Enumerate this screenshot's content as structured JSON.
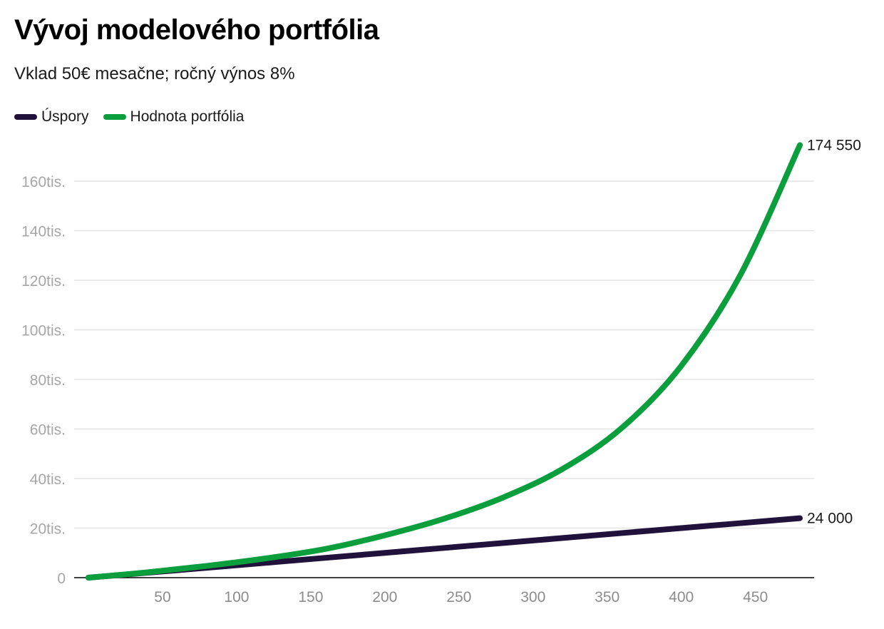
{
  "title": "Vývoj modelového portfólia",
  "subtitle": "Vklad 50€ mesačne; ročný výnos 8%",
  "legend": [
    {
      "label": "Úspory",
      "color": "#20123a"
    },
    {
      "label": "Hodnota portfólia",
      "color": "#0a9f3c"
    }
  ],
  "chart_data": {
    "type": "line",
    "title": "Vývoj modelového portfólia",
    "subtitle": "Vklad 50€ mesačne; ročný výnos 8%",
    "xlabel": "",
    "ylabel": "",
    "xlim": [
      0,
      480
    ],
    "ylim": [
      0,
      160000
    ],
    "x_ticks": [
      50,
      100,
      150,
      200,
      250,
      300,
      350,
      400,
      450
    ],
    "y_ticks": [
      0,
      20000,
      40000,
      60000,
      80000,
      100000,
      120000,
      140000,
      160000
    ],
    "y_tick_labels": [
      "0",
      "20tis.",
      "40tis.",
      "60tis.",
      "80tis.",
      "100tis.",
      "120tis.",
      "140tis.",
      "160tis."
    ],
    "grid": true,
    "legend_position": "top-left",
    "x": [
      0,
      40,
      80,
      120,
      160,
      200,
      240,
      280,
      320,
      360,
      400,
      440,
      480
    ],
    "series": [
      {
        "name": "Úspory",
        "color": "#20123a",
        "values": [
          0,
          2000,
          4000,
          6000,
          8000,
          10000,
          12000,
          14000,
          16000,
          18000,
          20000,
          22000,
          24000
        ],
        "end_label": "24 000"
      },
      {
        "name": "Hodnota portfólia",
        "color": "#0a9f3c",
        "values": [
          0,
          2150,
          4750,
          7800,
          11600,
          17100,
          23800,
          32400,
          43900,
          60500,
          85500,
          122300,
          174550
        ],
        "end_label": "174 550"
      }
    ]
  }
}
